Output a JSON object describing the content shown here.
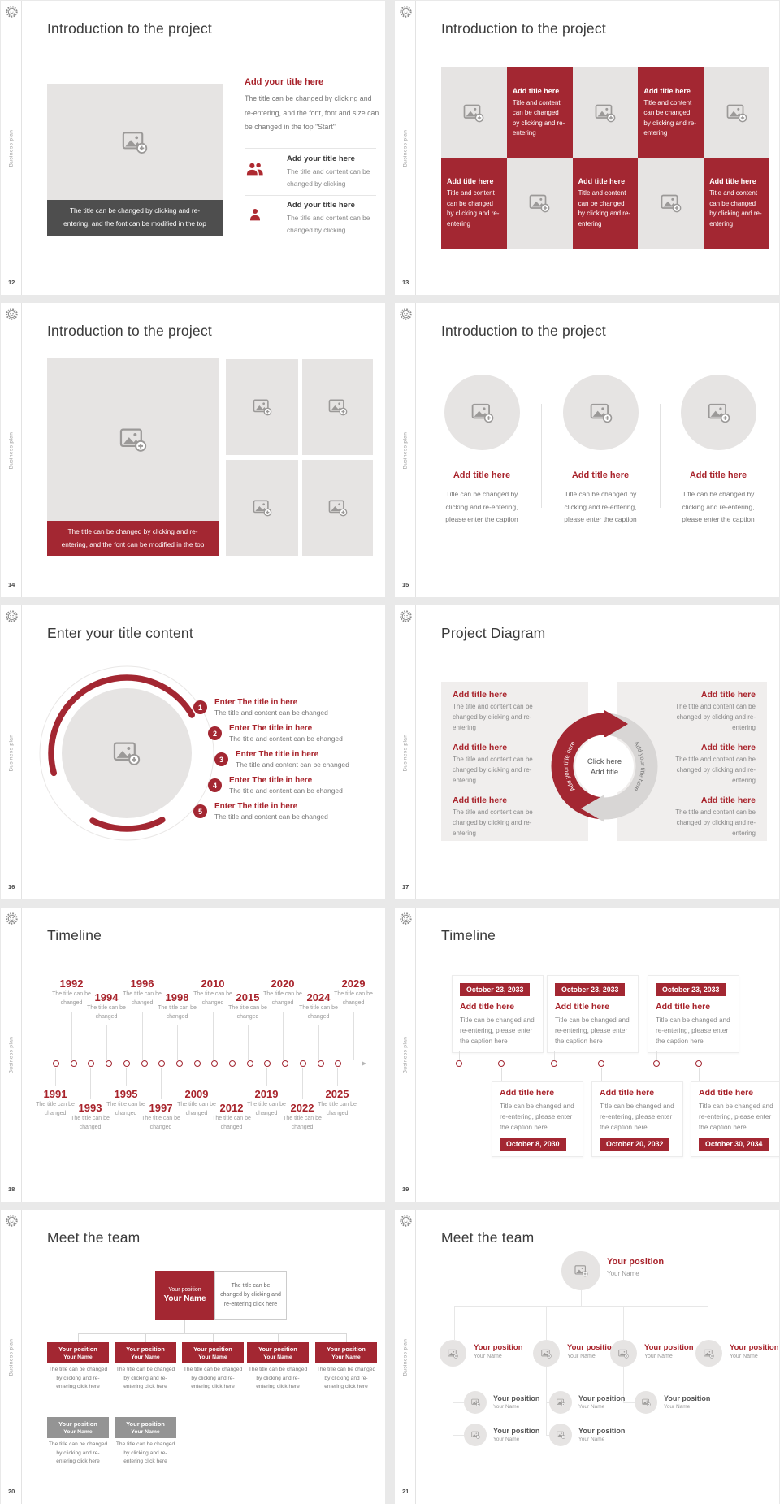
{
  "colors": {
    "accent": "#A32732",
    "accent_text": "#A8232B",
    "dark_box": "#4E4E4E",
    "gray_box": "#949494"
  },
  "common": {
    "sidebar_text": "Business plan"
  },
  "s12": {
    "number": "12",
    "title": "Introduction to the project",
    "photo_caption": "The title can be changed by clicking and re-entering, and the font can be modified in the top",
    "right_title": "Add your title here",
    "right_body": "The title can be changed by clicking and re-entering, and the font, font and size can be changed in the top \"Start\"",
    "item_title": "Add your title here",
    "item_body": "The title and content can be changed by clicking"
  },
  "s13": {
    "number": "13",
    "title": "Introduction to the project",
    "cell_title": "Add title here",
    "cell_body": "Title and content can be changed by clicking and re-entering"
  },
  "s14": {
    "number": "14",
    "title": "Introduction to the project",
    "photo_caption": "The title can be changed by clicking and re-entering, and the font can be modified in the top"
  },
  "s15": {
    "number": "15",
    "title": "Introduction to the project",
    "item_title": "Add title here",
    "item_caption": "Title can be changed by clicking and re-entering, please enter the caption"
  },
  "s16": {
    "number": "16",
    "title": "Enter your title content",
    "numbers": [
      "1",
      "2",
      "3",
      "4",
      "5"
    ],
    "item_title": "Enter The title in here",
    "item_body": "The title and content can be changed"
  },
  "s17": {
    "number": "17",
    "title": "Project Diagram",
    "block_title": "Add title here",
    "block_body": "The title and content can be changed by clicking and re-entering",
    "center_top": "Click here",
    "center_bottom": "Add title",
    "arc_label_left": "Add your title here",
    "arc_label_right": "Add your title here"
  },
  "s18": {
    "number": "18",
    "title": "Timeline",
    "caption": "The title can be changed",
    "top_years": [
      "1992",
      "1994",
      "1996",
      "1998",
      "2010",
      "2015",
      "2020",
      "2024",
      "2029"
    ],
    "bottom_years": [
      "1991",
      "1993",
      "1995",
      "1997",
      "2009",
      "2012",
      "2019",
      "2022",
      "2025"
    ]
  },
  "s19": {
    "number": "19",
    "title": "Timeline",
    "item_title": "Add title here",
    "item_caption": "Title can be changed and re-entering, please enter the caption here",
    "top_dates": [
      "October 23, 2033",
      "October 23, 2033",
      "October 23, 2033"
    ],
    "bottom_dates": [
      "October 8, 2030",
      "October 20, 2032",
      "October 30, 2034"
    ]
  },
  "s20": {
    "number": "20",
    "title": "Meet the team",
    "position": "Your position",
    "name": "Your Name",
    "note": "The title can be changed by clicking and re-entering click here"
  },
  "s21": {
    "number": "21",
    "title": "Meet the team",
    "position": "Your position",
    "name": "Your Name"
  }
}
